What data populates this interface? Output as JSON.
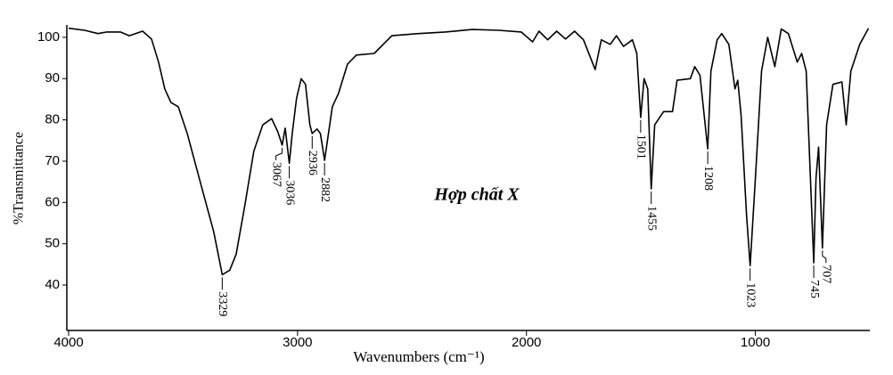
{
  "chart_data": {
    "type": "line",
    "x_label": "Wavenumbers (cm⁻¹)",
    "y_label": "%Transmittance",
    "annotation": "Hợp chất X",
    "xlim": [
      4000,
      500
    ],
    "ylim": [
      29,
      103
    ],
    "xticks": [
      4000,
      3000,
      2000,
      1000
    ],
    "yticks": [
      40,
      50,
      60,
      70,
      80,
      90,
      100
    ],
    "color": "#000000",
    "series": [
      {
        "x": [
          4000,
          3930,
          3872,
          3833,
          3774,
          3735,
          3677,
          3638,
          3607,
          3580,
          3553,
          3521,
          3482,
          3424,
          3366,
          3329,
          3296,
          3268,
          3230,
          3191,
          3152,
          3113,
          3086,
          3067,
          3054,
          3036,
          3023,
          3004,
          2984,
          2965,
          2946,
          2936,
          2915,
          2900,
          2882,
          2848,
          2821,
          2782,
          2743,
          2665,
          2588,
          2471,
          2354,
          2237,
          2121,
          2023,
          1973,
          1945,
          1907,
          1868,
          1829,
          1790,
          1751,
          1700,
          1673,
          1634,
          1607,
          1576,
          1537,
          1518,
          1501,
          1486,
          1470,
          1455,
          1440,
          1401,
          1362,
          1342,
          1284,
          1265,
          1242,
          1208,
          1194,
          1167,
          1147,
          1116,
          1089,
          1077,
          1062,
          1039,
          1023,
          1000,
          973,
          946,
          915,
          887,
          856,
          817,
          798,
          778,
          745,
          735,
          724,
          707,
          689,
          661,
          622,
          603,
          583,
          544,
          506
        ],
        "values": [
          102.2,
          101.7,
          100.9,
          101.3,
          101.3,
          100.4,
          101.5,
          99.6,
          94,
          87.5,
          84.2,
          83.2,
          76.7,
          64.8,
          52.9,
          42.5,
          43.6,
          47.5,
          59.4,
          72.4,
          78.8,
          80.3,
          77.1,
          73.9,
          78,
          69.5,
          76.7,
          85.3,
          90,
          88.6,
          78.8,
          76.7,
          77.8,
          76.7,
          70.2,
          83.2,
          86.4,
          93.5,
          95.7,
          96.1,
          100.4,
          100.9,
          101.3,
          101.9,
          101.7,
          101.3,
          98.9,
          101.5,
          99.4,
          101.5,
          99.6,
          101.5,
          99.4,
          92.2,
          99.4,
          98.3,
          100.4,
          97.8,
          99.4,
          96.1,
          80.6,
          90,
          87.5,
          63.3,
          78.8,
          82,
          82,
          89.6,
          90,
          92.9,
          90.8,
          73,
          91.8,
          99.4,
          100.9,
          98.3,
          87.5,
          89.6,
          81,
          57.2,
          44.7,
          65.9,
          91.8,
          100,
          92.9,
          102,
          100.9,
          94,
          96.1,
          91.8,
          45.4,
          65.9,
          73.4,
          49,
          78.8,
          88.6,
          89.2,
          78.8,
          91.8,
          98.3,
          102.2
        ]
      }
    ],
    "peak_labels": [
      3329,
      3067,
      3036,
      2936,
      2882,
      1501,
      1455,
      1208,
      1023,
      745,
      707
    ]
  }
}
